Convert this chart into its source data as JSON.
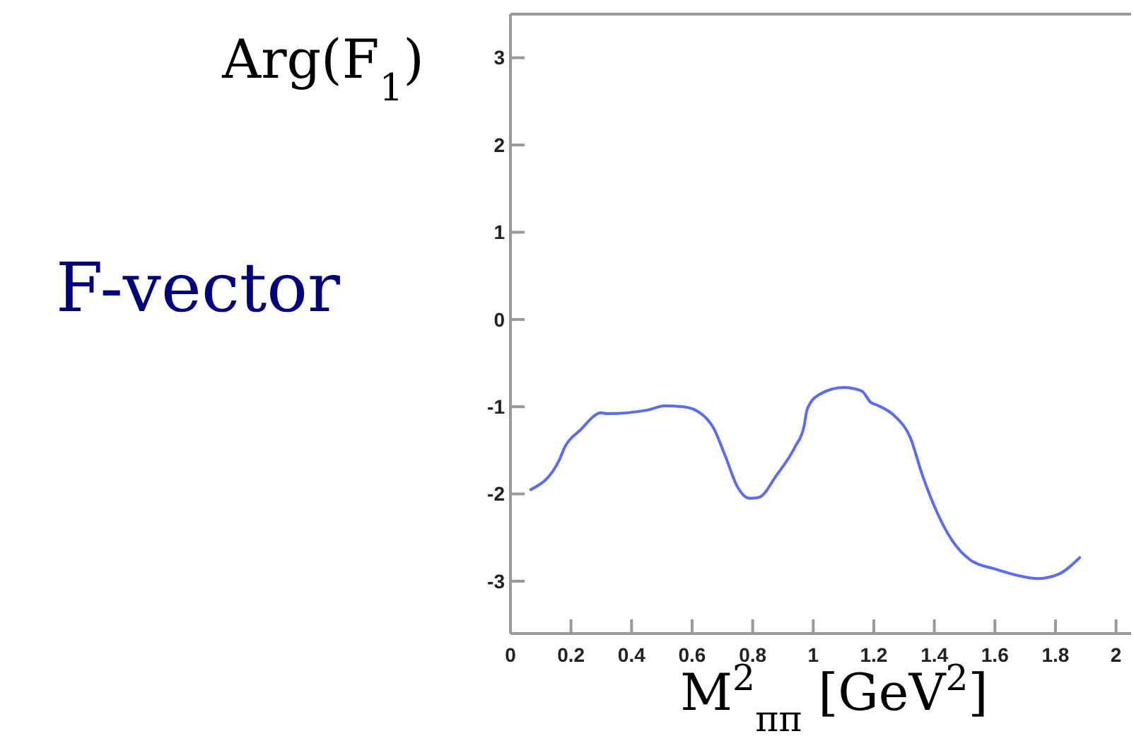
{
  "chart_data": {
    "type": "line",
    "title": "F-vector",
    "ylabel": "Arg(F$_{1}$)",
    "xlabel": "M$^{2}$$_{ππ}$ [GeV$^{2}$]",
    "xlim": [
      0,
      2.05
    ],
    "ylim": [
      -3.6,
      3.5
    ],
    "xticks": [
      0,
      0.2,
      0.4,
      0.6,
      0.8,
      1,
      1.2,
      1.4,
      1.6,
      1.8,
      2
    ],
    "yticks": [
      -3,
      -2,
      -1,
      0,
      1,
      2,
      3
    ],
    "series": [
      {
        "color": "#5a6cf0",
        "x": [
          0.067,
          0.16,
          0.18,
          0.23,
          0.3,
          0.32,
          0.45,
          0.51,
          0.57,
          0.63,
          0.67,
          0.71,
          0.75,
          0.79,
          0.82,
          0.88,
          0.94,
          0.97,
          0.98,
          1.02,
          1.1,
          1.16,
          1.19,
          1.21,
          1.27,
          1.32,
          1.36,
          1.41,
          1.46,
          1.52,
          1.6,
          1.67,
          1.74,
          1.81,
          1.88
        ],
        "values": [
          -1.95,
          -1.62,
          -1.46,
          -1.27,
          -1.07,
          -1.08,
          -1.04,
          -0.99,
          -1.0,
          -1.08,
          -1.24,
          -1.57,
          -1.92,
          -2.05,
          -2.04,
          -1.78,
          -1.46,
          -1.22,
          -1.03,
          -0.86,
          -0.78,
          -0.82,
          -0.95,
          -0.98,
          -1.11,
          -1.35,
          -1.78,
          -2.22,
          -2.54,
          -2.76,
          -2.86,
          -2.93,
          -2.97,
          -2.92,
          -2.73
        ]
      }
    ]
  }
}
